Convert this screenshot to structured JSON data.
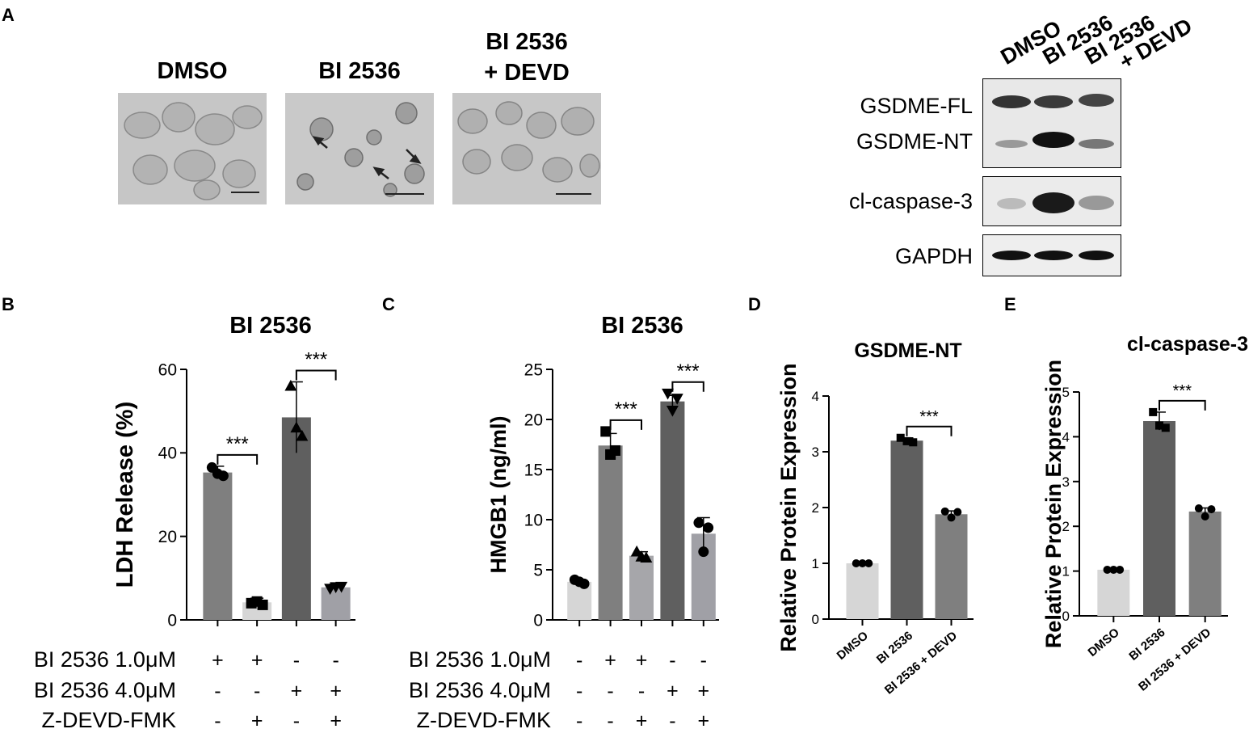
{
  "panels": {
    "A": "A",
    "B": "B",
    "C": "C",
    "D": "D",
    "E": "E"
  },
  "micrographs": [
    {
      "title": "DMSO"
    },
    {
      "title": "BI 2536"
    },
    {
      "title_line1": "BI 2536",
      "title_line2": "+ DEVD"
    }
  ],
  "blot": {
    "lanes": [
      "DMSO",
      "BI 2536",
      "BI 2536",
      "+ DEVD"
    ],
    "rows": [
      "GSDME-FL",
      "GSDME-NT",
      "cl-caspase-3",
      "GAPDH"
    ]
  },
  "chart_data": [
    {
      "id": "B",
      "type": "bar",
      "title": "BI 2536",
      "ylabel": "LDH Release (%)",
      "ylim": [
        0,
        60
      ],
      "yticks": [
        0,
        20,
        40,
        60
      ],
      "values": [
        35.3,
        4.2,
        48.5,
        7.8
      ],
      "errors": [
        1.5,
        1.0,
        8.5,
        0.8
      ],
      "points": [
        [
          36.5,
          34.5,
          35.0
        ],
        [
          4.0,
          3.6,
          4.4
        ],
        [
          56.0,
          44.0,
          46.0
        ],
        [
          7.5,
          8.0,
          7.9
        ]
      ],
      "markers": [
        "circle",
        "square",
        "triangle-up",
        "triangle-down"
      ],
      "colors": [
        "#7f7f7f",
        "#d6d6d6",
        "#5f5f5f",
        "#a0a0a6"
      ],
      "significance": [
        {
          "from": 0,
          "to": 1,
          "label": "***"
        },
        {
          "from": 2,
          "to": 3,
          "label": "***"
        }
      ],
      "conditions": [
        {
          "label": "BI 2536 1.0μM",
          "signs": [
            "+",
            "+",
            "-",
            "-"
          ]
        },
        {
          "label": "BI 2536 4.0μM",
          "signs": [
            "-",
            "-",
            "+",
            "+"
          ]
        },
        {
          "label": "Z-DEVD-FMK",
          "signs": [
            "-",
            "+",
            "-",
            "+"
          ]
        }
      ]
    },
    {
      "id": "C",
      "type": "bar",
      "title": "BI 2536",
      "ylabel": "HMGB1 (ng/ml)",
      "ylim": [
        0,
        25
      ],
      "yticks": [
        0,
        5,
        10,
        15,
        20,
        25
      ],
      "values": [
        3.8,
        17.4,
        6.4,
        21.8,
        8.6
      ],
      "errors": [
        0.2,
        1.2,
        0.4,
        0.6,
        1.6
      ],
      "points": [
        [
          4.0,
          3.6,
          3.8
        ],
        [
          18.8,
          16.9,
          16.5
        ],
        [
          6.8,
          6.2,
          6.3
        ],
        [
          22.6,
          22.1,
          20.9
        ],
        [
          9.7,
          9.2,
          6.8
        ]
      ],
      "markers": [
        "circle",
        "square",
        "triangle-up",
        "triangle-down",
        "circle"
      ],
      "colors": [
        "#d6d6d6",
        "#7f7f7f",
        "#a6a6aa",
        "#5f5f5f",
        "#a0a0a6"
      ],
      "significance": [
        {
          "from": 1,
          "to": 2,
          "label": "***"
        },
        {
          "from": 3,
          "to": 4,
          "label": "***"
        }
      ],
      "conditions": [
        {
          "label": "BI 2536 1.0μM",
          "signs": [
            "-",
            "+",
            "+",
            "-",
            "-"
          ]
        },
        {
          "label": "BI 2536 4.0μM",
          "signs": [
            "-",
            "-",
            "-",
            "+",
            "+"
          ]
        },
        {
          "label": "Z-DEVD-FMK",
          "signs": [
            "-",
            "-",
            "+",
            "-",
            "+"
          ]
        }
      ]
    },
    {
      "id": "D",
      "type": "bar",
      "title": "GSDME-NT",
      "ylabel": "Relative Protein Expression",
      "ylim": [
        0,
        4
      ],
      "yticks": [
        0,
        1,
        2,
        3,
        4
      ],
      "categories": [
        "DMSO",
        "BI 2536",
        "BI 2536 + DEVD"
      ],
      "values": [
        1.0,
        3.2,
        1.88
      ],
      "errors": [
        0.02,
        0.05,
        0.06
      ],
      "points": [
        [
          1.0,
          1.0,
          1.0
        ],
        [
          3.25,
          3.17,
          3.19
        ],
        [
          1.93,
          1.92,
          1.82
        ]
      ],
      "markers": [
        "circle",
        "square",
        "circle"
      ],
      "colors": [
        "#d6d6d6",
        "#5f5f5f",
        "#7f7f7f"
      ],
      "significance": [
        {
          "from": 1,
          "to": 2,
          "label": "***"
        }
      ]
    },
    {
      "id": "E",
      "type": "bar",
      "title": "cl-caspase-3",
      "ylabel": "Relative Protein Expression",
      "ylim": [
        0,
        5
      ],
      "yticks": [
        0,
        1,
        2,
        3,
        4,
        5
      ],
      "categories": [
        "DMSO",
        "BI 2536",
        "BI 2536 + DEVD"
      ],
      "values": [
        1.03,
        4.35,
        2.33
      ],
      "errors": [
        0.02,
        0.2,
        0.08
      ],
      "points": [
        [
          1.03,
          1.03,
          1.03
        ],
        [
          4.55,
          4.2,
          4.25
        ],
        [
          2.4,
          2.38,
          2.22
        ]
      ],
      "markers": [
        "circle",
        "square",
        "circle"
      ],
      "colors": [
        "#d6d6d6",
        "#5f5f5f",
        "#7f7f7f"
      ],
      "significance": [
        {
          "from": 1,
          "to": 2,
          "label": "***"
        }
      ]
    }
  ]
}
